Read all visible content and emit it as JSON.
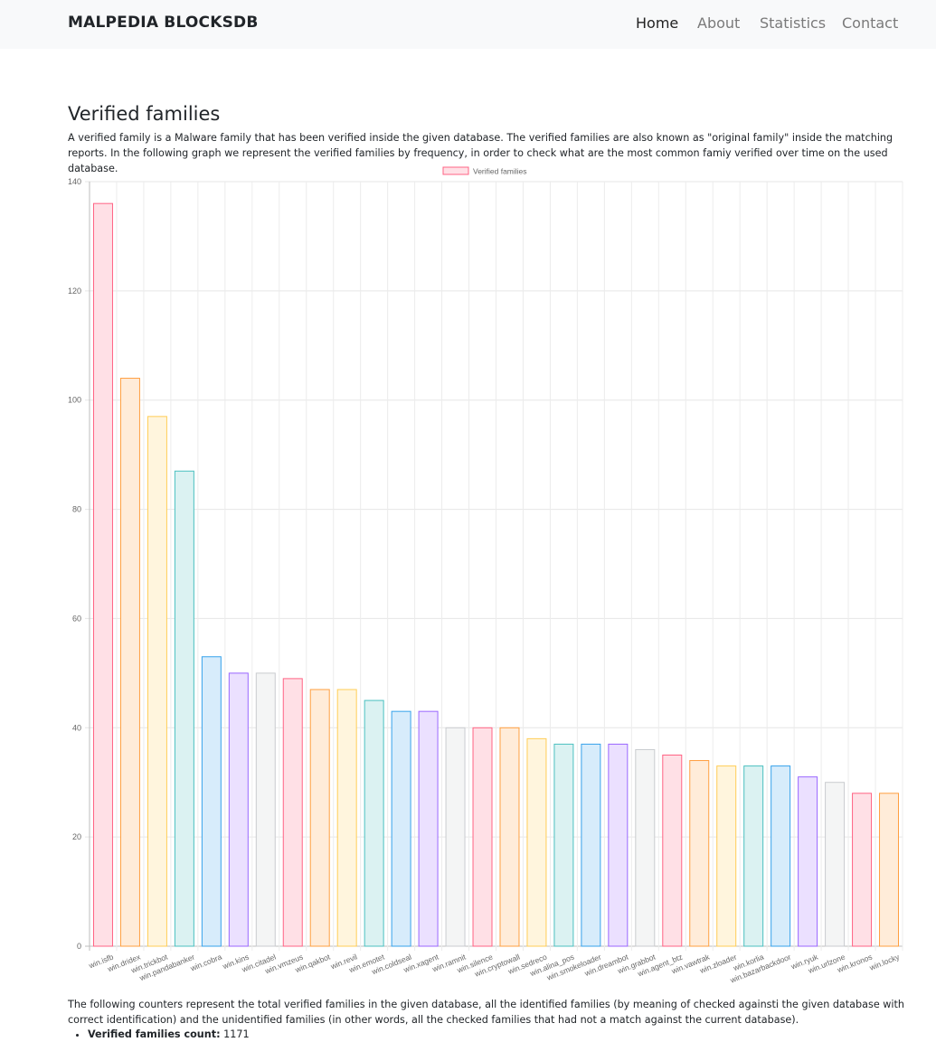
{
  "navbar": {
    "brand": "MALPEDIA BLOCKSDB",
    "links": [
      "Home",
      "About",
      "Statistics",
      "Contact"
    ],
    "active": "Home"
  },
  "section": {
    "title": "Verified families",
    "intro": "A verified family is a Malware family that has been verified inside the given database. The verified families are also known as \"original family\" inside the matching reports. In the following graph we represent the verified families by frequency, in order to check what are the most common famiy verified over time on the used database.",
    "outro": "The following counters represent the total verified families in the given database, all the identified families (by meaning of checked againsti the given database with correct identification) and the unidentified families (in other words, all the checked families that had not a match against the current database).",
    "count_label": "Verified families count:",
    "count_value": "1171"
  },
  "colors": {
    "palette_border": [
      "#ff6384",
      "#ff9f40",
      "#ffcd56",
      "#4bc0c0",
      "#36a2eb",
      "#9966ff",
      "#c9cbcf"
    ],
    "palette_fill": [
      "#ffe0e6",
      "#ffecd9",
      "#fff5dd",
      "#dbf2f2",
      "#d7ecfb",
      "#ebe0ff",
      "#f4f5f5"
    ]
  },
  "chart_data": {
    "type": "bar",
    "legend": "Verified families",
    "legend_position": "top-center",
    "ylim": [
      0,
      140
    ],
    "yticks": [
      0,
      20,
      40,
      60,
      80,
      100,
      120,
      140
    ],
    "grid": true,
    "categories": [
      "win.isfb",
      "win.dridex",
      "win.trickbot",
      "win.pandabanker",
      "win.cobra",
      "win.kins",
      "win.citadel",
      "win.vmzeus",
      "win.qakbot",
      "win.revil",
      "win.emotet",
      "win.coldseal",
      "win.xagent",
      "win.ramnit",
      "win.silence",
      "win.cryptowall",
      "win.sedreco",
      "win.alina_pos",
      "win.smokeloader",
      "win.dreambot",
      "win.grabbot",
      "win.agent_btz",
      "win.vawtrak",
      "win.zloader",
      "win.korlia",
      "win.bazarbackdoor",
      "win.ryuk",
      "win.urlzone",
      "win.kronos",
      "win.locky"
    ],
    "values": [
      136,
      104,
      97,
      87,
      53,
      50,
      50,
      49,
      47,
      47,
      45,
      43,
      43,
      40,
      40,
      40,
      38,
      37,
      37,
      37,
      36,
      35,
      34,
      33,
      33,
      33,
      31,
      30,
      28,
      28
    ]
  }
}
